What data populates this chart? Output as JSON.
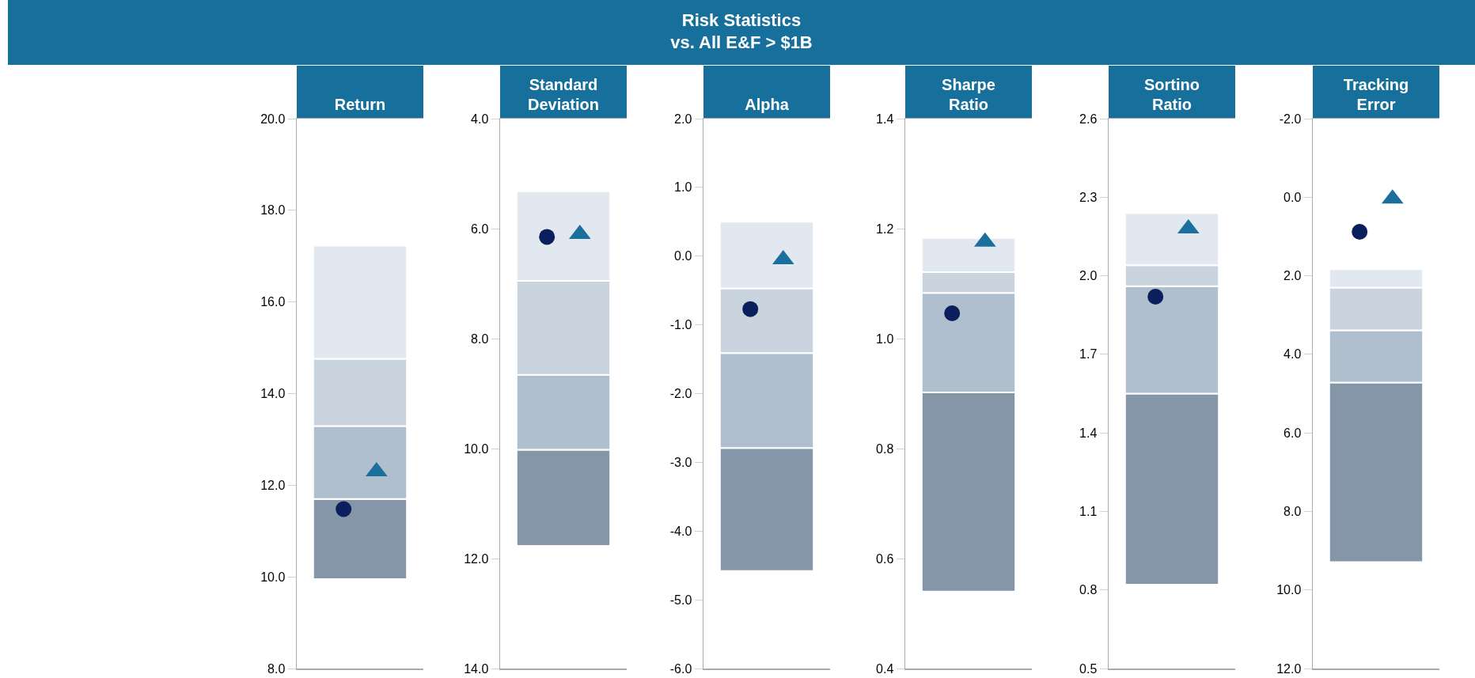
{
  "chart_data": [
    {
      "type": "bar",
      "title": "Return",
      "annotations": [
        "Risk Statistics",
        "vs. All E&F > $1B"
      ],
      "categories": [
        null
      ],
      "tick_labels": "y",
      "ylim": [
        8,
        20
      ],
      "yticks": [
        {
          "value": 8,
          "label": "8.0"
        },
        {
          "value": 10,
          "label": "10.0"
        },
        {
          "value": 12,
          "label": "12.0"
        },
        {
          "value": 14,
          "label": "14.0"
        },
        {
          "value": 16,
          "label": "16.0"
        },
        {
          "value": 18,
          "label": "18.0"
        },
        {
          "value": 20,
          "label": "20.0"
        }
      ],
      "series": [
        {
          "color": "#8596a8",
          "base": [
            9.95
          ],
          "values": [
            1.75
          ]
        },
        {
          "color": "#afbfce",
          "base": [
            11.7
          ],
          "values": [
            1.59
          ]
        },
        {
          "color": "#c9d4de",
          "base": [
            13.29
          ],
          "values": [
            1.47
          ]
        },
        {
          "color": "#e2e8ef",
          "base": [
            14.76
          ],
          "values": [
            2.47
          ]
        },
        {
          "type": "scatter",
          "marker": "circle",
          "color": "#0a1f5c",
          "values": [
            11.48
          ]
        },
        {
          "type": "scatter",
          "marker": "triangle",
          "color": "#1a6f9c",
          "values": [
            12.3
          ]
        }
      ]
    },
    {
      "type": "bar",
      "title": "Standard Deviation",
      "categories": [
        null
      ],
      "tick_labels": "y",
      "ylim": [
        14,
        4
      ],
      "yticks": [
        {
          "value": 4,
          "label": "4.0"
        },
        {
          "value": 6,
          "label": "6.0"
        },
        {
          "value": 8,
          "label": "8.0"
        },
        {
          "value": 10,
          "label": "10.0"
        },
        {
          "value": 12,
          "label": "12.0"
        },
        {
          "value": 14,
          "label": "14.0"
        }
      ],
      "series": [
        {
          "color": "#8596a8",
          "base": [
            11.77
          ],
          "values": [
            -1.75
          ]
        },
        {
          "color": "#afbfce",
          "base": [
            10.02
          ],
          "values": [
            -1.36
          ]
        },
        {
          "color": "#c9d4de",
          "base": [
            8.66
          ],
          "values": [
            -1.71
          ]
        },
        {
          "color": "#e2e8ef",
          "base": [
            6.95
          ],
          "values": [
            -1.63
          ]
        },
        {
          "type": "scatter",
          "marker": "circle",
          "color": "#0a1f5c",
          "values": [
            6.15
          ]
        },
        {
          "type": "scatter",
          "marker": "triangle",
          "color": "#1a6f9c",
          "values": [
            6.1
          ]
        }
      ]
    },
    {
      "type": "bar",
      "title": "Alpha",
      "categories": [
        null
      ],
      "tick_labels": "y",
      "ylim": [
        -6,
        2
      ],
      "yticks": [
        {
          "value": -6,
          "label": "-6.0"
        },
        {
          "value": -5,
          "label": "-5.0"
        },
        {
          "value": -4,
          "label": "-4.0"
        },
        {
          "value": -3,
          "label": "-3.0"
        },
        {
          "value": -2,
          "label": "-2.0"
        },
        {
          "value": -1,
          "label": "-1.0"
        },
        {
          "value": 0,
          "label": "0.0"
        },
        {
          "value": 1,
          "label": "1.0"
        },
        {
          "value": 2,
          "label": "2.0"
        }
      ],
      "series": [
        {
          "color": "#8596a8",
          "base": [
            -4.58
          ],
          "values": [
            1.79
          ]
        },
        {
          "color": "#afbfce",
          "base": [
            -2.79
          ],
          "values": [
            1.38
          ]
        },
        {
          "color": "#c9d4de",
          "base": [
            -1.41
          ],
          "values": [
            0.94
          ]
        },
        {
          "color": "#e2e8ef",
          "base": [
            -0.47
          ],
          "values": [
            0.97
          ]
        },
        {
          "type": "scatter",
          "marker": "circle",
          "color": "#0a1f5c",
          "values": [
            -0.77
          ]
        },
        {
          "type": "scatter",
          "marker": "triangle",
          "color": "#1a6f9c",
          "values": [
            -0.05
          ]
        }
      ]
    },
    {
      "type": "bar",
      "title": "Sharpe Ratio",
      "categories": [
        null
      ],
      "tick_labels": "y",
      "ylim": [
        0.4,
        1.4
      ],
      "yticks": [
        0.4,
        0.6,
        0.8,
        {
          "value": 1,
          "label": "1.0"
        },
        1.2,
        1.4
      ],
      "series": [
        {
          "color": "#8596a8",
          "base": [
            0.54
          ],
          "values": [
            0.362
          ]
        },
        {
          "color": "#afbfce",
          "base": [
            0.902
          ],
          "values": [
            0.181
          ]
        },
        {
          "color": "#c9d4de",
          "base": [
            1.083
          ],
          "values": [
            0.038
          ]
        },
        {
          "color": "#e2e8ef",
          "base": [
            1.121
          ],
          "values": [
            0.062
          ]
        },
        {
          "type": "scatter",
          "marker": "circle",
          "color": "#0a1f5c",
          "values": [
            1.046
          ]
        },
        {
          "type": "scatter",
          "marker": "triangle",
          "color": "#1a6f9c",
          "values": [
            1.176
          ]
        }
      ]
    },
    {
      "type": "bar",
      "title": "Sortino Ratio",
      "categories": [
        null
      ],
      "tick_labels": "y",
      "ylim": [
        0.5,
        2.6
      ],
      "yticks": [
        0.5,
        0.8,
        1.1,
        1.4,
        1.7,
        {
          "value": 2,
          "label": "2.0"
        },
        2.3,
        2.6
      ],
      "series": [
        {
          "color": "#8596a8",
          "base": [
            0.82
          ],
          "values": [
            0.73
          ]
        },
        {
          "color": "#afbfce",
          "base": [
            1.55
          ],
          "values": [
            0.41
          ]
        },
        {
          "color": "#c9d4de",
          "base": [
            1.96
          ],
          "values": [
            0.08
          ]
        },
        {
          "color": "#e2e8ef",
          "base": [
            2.04
          ],
          "values": [
            0.2
          ]
        },
        {
          "type": "scatter",
          "marker": "circle",
          "color": "#0a1f5c",
          "values": [
            1.92
          ]
        },
        {
          "type": "scatter",
          "marker": "triangle",
          "color": "#1a6f9c",
          "values": [
            2.18
          ]
        }
      ]
    },
    {
      "type": "bar",
      "title": "Tracking Error",
      "categories": [
        null
      ],
      "tick_labels": "y",
      "ylim": [
        12,
        -2
      ],
      "yticks": [
        {
          "value": -2,
          "label": "-2.0"
        },
        {
          "value": 0,
          "label": "0.0"
        },
        {
          "value": 2,
          "label": "2.0"
        },
        {
          "value": 4,
          "label": "4.0"
        },
        {
          "value": 6,
          "label": "6.0"
        },
        {
          "value": 8,
          "label": "8.0"
        },
        {
          "value": 10,
          "label": "10.0"
        },
        {
          "value": 12,
          "label": "12.0"
        }
      ],
      "series": [
        {
          "color": "#8596a8",
          "base": [
            9.29
          ],
          "values": [
            -4.57
          ]
        },
        {
          "color": "#afbfce",
          "base": [
            4.72
          ],
          "values": [
            -1.33
          ]
        },
        {
          "color": "#c9d4de",
          "base": [
            3.39
          ],
          "values": [
            -1.09
          ]
        },
        {
          "color": "#e2e8ef",
          "base": [
            2.3
          ],
          "values": [
            -0.47
          ]
        },
        {
          "type": "scatter",
          "marker": "circle",
          "color": "#0a1f5c",
          "values": [
            0.88
          ]
        },
        {
          "type": "scatter",
          "marker": "triangle",
          "color": "#1a6f9c",
          "values": [
            0.04
          ]
        }
      ]
    }
  ]
}
